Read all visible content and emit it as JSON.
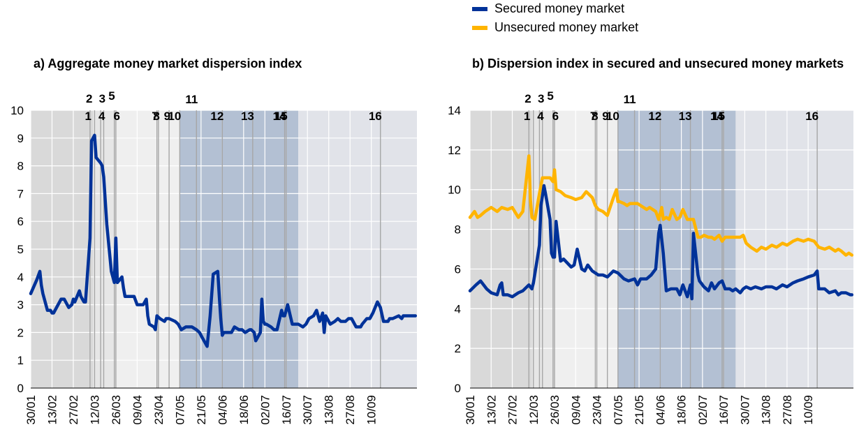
{
  "legend": [
    {
      "name": "Secured money market",
      "color": "#003299"
    },
    {
      "name": "Unsecured money market",
      "color": "#FFB400"
    }
  ],
  "colors": {
    "period_dark": "#D9D9D9",
    "period_light": "#E6E6E6",
    "period_pale": "#EFEFEF",
    "period_blue": "#B3C0D3",
    "period_grey": "#E1E3E9",
    "gridline": "#FFFFFF",
    "event_line": "#A6A6A6"
  },
  "chart_data": [
    {
      "type": "line",
      "title": "a) Aggregate money market dispersion index",
      "xlabel": "",
      "ylabel": "",
      "ylim": [
        0,
        10
      ],
      "yticks": [
        0,
        1,
        2,
        3,
        4,
        5,
        6,
        7,
        8,
        9,
        10
      ],
      "xlim": [
        "30/01",
        "10/10"
      ],
      "x_ticks": [
        "30/01",
        "13/02",
        "27/02",
        "12/03",
        "26/03",
        "09/04",
        "23/04",
        "07/05",
        "21/05",
        "04/06",
        "18/06",
        "02/07",
        "16/07",
        "30/07",
        "13/08",
        "27/08",
        "10/09"
      ],
      "grid": true,
      "shaded_periods": [
        {
          "from": "30/01",
          "to": "11/03",
          "shade": "period_dark"
        },
        {
          "from": "11/03",
          "to": "26/03",
          "shade": "period_light"
        },
        {
          "from": "26/03",
          "to": "07/05",
          "shade": "period_pale"
        },
        {
          "from": "07/05",
          "to": "24/07",
          "shade": "period_blue"
        },
        {
          "from": "24/07",
          "to": "10/10",
          "shade": "period_grey"
        }
      ],
      "event_lines": [
        {
          "label": "1",
          "date": "09/03"
        },
        {
          "label": "2",
          "date": "12/03"
        },
        {
          "label": "3",
          "date": "16/03"
        },
        {
          "label": "4",
          "date": "18/03"
        },
        {
          "label": "5",
          "date": "25/03"
        },
        {
          "label": "6",
          "date": "26/03"
        },
        {
          "label": "7",
          "date": "22/04"
        },
        {
          "label": "8",
          "date": "23/04"
        },
        {
          "label": "9",
          "date": "30/04"
        },
        {
          "label": "10",
          "date": "07/05"
        },
        {
          "label": "11",
          "date": "18/05"
        },
        {
          "label": "12",
          "date": "04/06"
        },
        {
          "label": "13",
          "date": "24/06"
        },
        {
          "label": "14",
          "date": "15/07"
        },
        {
          "label": "15",
          "date": "16/07"
        },
        {
          "label": "16",
          "date": "16/09"
        }
      ],
      "series": [
        {
          "name": "Secured money market",
          "color": "#003299",
          "x": [
            "30/01",
            "03/02",
            "05/02",
            "06/02",
            "07/02",
            "10/02",
            "12/02",
            "13/02",
            "14/02",
            "19/02",
            "21/02",
            "24/02",
            "26/02",
            "27/02",
            "28/02",
            "02/03",
            "03/03",
            "04/03",
            "05/03",
            "06/03",
            "09/03",
            "10/03",
            "12/03",
            "13/03",
            "16/03",
            "17/03",
            "18/03",
            "20/03",
            "23/03",
            "25/03",
            "26/03",
            "27/03",
            "30/03",
            "31/03",
            "01/04",
            "03/04",
            "06/04",
            "07/04",
            "09/04",
            "13/04",
            "15/04",
            "16/04",
            "17/04",
            "20/04",
            "21/04",
            "22/04",
            "24/04",
            "27/04",
            "28/04",
            "30/04",
            "04/05",
            "06/05",
            "08/05",
            "11/05",
            "12/05",
            "15/05",
            "18/05",
            "20/05",
            "22/05",
            "25/05",
            "27/05",
            "29/05",
            "01/06",
            "02/06",
            "03/06",
            "04/06",
            "05/06",
            "08/06",
            "10/06",
            "12/06",
            "15/06",
            "16/06",
            "17/06",
            "19/06",
            "22/06",
            "23/06",
            "25/06",
            "26/06",
            "29/06",
            "30/06",
            "01/07",
            "02/07",
            "03/07",
            "06/07",
            "08/07",
            "10/07",
            "13/07",
            "14/07",
            "15/07",
            "17/07",
            "20/07",
            "21/07",
            "24/07",
            "27/07",
            "29/07",
            "31/07",
            "03/08",
            "05/08",
            "07/08",
            "09/08",
            "10/08",
            "11/08",
            "14/08",
            "17/08",
            "19/08",
            "21/08",
            "24/08",
            "26/08",
            "28/08",
            "31/08",
            "02/09",
            "03/09",
            "04/09",
            "07/09",
            "09/09",
            "10/09",
            "11/09",
            "14/09",
            "16/09",
            "18/09",
            "21/09",
            "22/09",
            "24/09",
            "28/09",
            "30/09",
            "01/10",
            "02/10",
            "05/10",
            "07/10",
            "09/10"
          ],
          "values": [
            3.4,
            3.9,
            4.2,
            3.7,
            3.4,
            2.8,
            2.8,
            2.7,
            2.7,
            3.2,
            3.2,
            2.9,
            3.0,
            3.2,
            3.1,
            3.5,
            3.3,
            3.2,
            3.1,
            3.1,
            5.4,
            8.9,
            9.1,
            8.3,
            8.1,
            8.0,
            7.6,
            5.9,
            4.2,
            3.8,
            5.4,
            3.8,
            4.0,
            3.6,
            3.3,
            3.3,
            3.3,
            3.3,
            3.0,
            3.0,
            3.2,
            2.6,
            2.3,
            2.2,
            2.1,
            2.6,
            2.5,
            2.4,
            2.5,
            2.5,
            2.4,
            2.3,
            2.1,
            2.2,
            2.2,
            2.2,
            2.1,
            2.0,
            1.8,
            1.5,
            2.6,
            4.1,
            4.2,
            3.3,
            2.5,
            1.9,
            2.0,
            2.0,
            2.0,
            2.2,
            2.1,
            2.1,
            2.1,
            2.0,
            2.1,
            2.1,
            2.0,
            1.7,
            2.0,
            3.2,
            2.4,
            2.3,
            2.3,
            2.2,
            2.1,
            2.1,
            2.8,
            2.6,
            2.6,
            3.0,
            2.3,
            2.3,
            2.3,
            2.2,
            2.3,
            2.5,
            2.6,
            2.8,
            2.4,
            2.7,
            2.0,
            2.6,
            2.3,
            2.4,
            2.5,
            2.4,
            2.4,
            2.5,
            2.5,
            2.2,
            2.2,
            2.2,
            2.3,
            2.5,
            2.5,
            2.6,
            2.7,
            3.1,
            2.9,
            2.4,
            2.4,
            2.5,
            2.5,
            2.6,
            2.5,
            2.6,
            2.6,
            2.6,
            2.6,
            2.6
          ]
        }
      ]
    },
    {
      "type": "line",
      "title": "b) Dispersion index in secured and unsecured money markets",
      "xlabel": "",
      "ylabel": "",
      "ylim": [
        0,
        14
      ],
      "yticks": [
        0,
        2,
        4,
        6,
        8,
        10,
        12,
        14
      ],
      "xlim": [
        "30/01",
        "10/10"
      ],
      "x_ticks": [
        "30/01",
        "13/02",
        "27/02",
        "12/03",
        "26/03",
        "09/04",
        "23/04",
        "07/05",
        "21/05",
        "04/06",
        "18/06",
        "02/07",
        "16/07",
        "30/07",
        "13/08",
        "27/08",
        "10/09"
      ],
      "grid": true,
      "shaded_periods": [
        {
          "from": "30/01",
          "to": "11/03",
          "shade": "period_dark"
        },
        {
          "from": "11/03",
          "to": "26/03",
          "shade": "period_light"
        },
        {
          "from": "26/03",
          "to": "07/05",
          "shade": "period_pale"
        },
        {
          "from": "07/05",
          "to": "24/07",
          "shade": "period_blue"
        },
        {
          "from": "24/07",
          "to": "10/10",
          "shade": "period_grey"
        }
      ],
      "event_lines": [
        {
          "label": "1",
          "date": "09/03"
        },
        {
          "label": "2",
          "date": "12/03"
        },
        {
          "label": "3",
          "date": "16/03"
        },
        {
          "label": "4",
          "date": "18/03"
        },
        {
          "label": "5",
          "date": "25/03"
        },
        {
          "label": "6",
          "date": "26/03"
        },
        {
          "label": "7",
          "date": "22/04"
        },
        {
          "label": "8",
          "date": "23/04"
        },
        {
          "label": "9",
          "date": "30/04"
        },
        {
          "label": "10",
          "date": "07/05"
        },
        {
          "label": "11",
          "date": "18/05"
        },
        {
          "label": "12",
          "date": "04/06"
        },
        {
          "label": "13",
          "date": "24/06"
        },
        {
          "label": "14",
          "date": "15/07"
        },
        {
          "label": "15",
          "date": "16/07"
        },
        {
          "label": "16",
          "date": "16/09"
        }
      ],
      "series": [
        {
          "name": "Secured money market",
          "color": "#003299",
          "x": [
            "30/01",
            "03/02",
            "06/02",
            "10/02",
            "13/02",
            "17/02",
            "19/02",
            "20/02",
            "21/02",
            "24/02",
            "27/02",
            "02/03",
            "05/03",
            "09/03",
            "11/03",
            "12/03",
            "16/03",
            "17/03",
            "19/03",
            "20/03",
            "23/03",
            "24/03",
            "25/03",
            "26/03",
            "27/03",
            "30/03",
            "01/04",
            "06/04",
            "08/04",
            "10/04",
            "13/04",
            "15/04",
            "17/04",
            "20/04",
            "22/04",
            "24/04",
            "27/04",
            "30/04",
            "04/05",
            "07/05",
            "11/05",
            "14/05",
            "18/05",
            "20/05",
            "22/05",
            "26/05",
            "29/05",
            "01/06",
            "03/06",
            "04/06",
            "06/06",
            "08/06",
            "11/06",
            "15/06",
            "17/06",
            "19/06",
            "22/06",
            "24/06",
            "25/06",
            "26/06",
            "29/06",
            "30/06",
            "01/07",
            "03/07",
            "06/07",
            "08/07",
            "10/07",
            "13/07",
            "15/07",
            "17/07",
            "20/07",
            "22/07",
            "24/07",
            "27/07",
            "29/07",
            "31/07",
            "03/08",
            "06/08",
            "10/08",
            "13/08",
            "17/08",
            "20/08",
            "24/08",
            "27/08",
            "31/08",
            "03/09",
            "07/09",
            "10/09",
            "14/09",
            "16/09",
            "17/09",
            "21/09",
            "24/09",
            "28/09",
            "30/09",
            "02/10",
            "05/10",
            "08/10",
            "09/10"
          ],
          "values": [
            4.9,
            5.2,
            5.4,
            5.0,
            4.8,
            4.7,
            5.2,
            5.3,
            4.7,
            4.7,
            4.6,
            4.8,
            4.9,
            5.2,
            5.0,
            5.3,
            7.2,
            9.2,
            10.2,
            9.8,
            8.5,
            6.8,
            6.6,
            6.6,
            8.4,
            6.4,
            6.5,
            6.1,
            6.2,
            7.0,
            6.0,
            5.9,
            6.2,
            5.9,
            5.8,
            5.7,
            5.7,
            5.6,
            5.9,
            5.8,
            5.5,
            5.4,
            5.5,
            5.2,
            5.5,
            5.5,
            5.7,
            6.0,
            7.8,
            8.2,
            6.8,
            4.9,
            5.0,
            5.0,
            4.7,
            5.2,
            4.6,
            5.2,
            4.5,
            7.8,
            5.7,
            5.4,
            5.3,
            5.1,
            4.9,
            5.3,
            5.0,
            5.3,
            5.4,
            5.0,
            5.0,
            4.9,
            5.0,
            4.8,
            5.0,
            5.1,
            5.0,
            5.1,
            5.0,
            5.1,
            5.1,
            5.0,
            5.2,
            5.1,
            5.3,
            5.4,
            5.5,
            5.6,
            5.7,
            5.9,
            5.0,
            5.0,
            4.8,
            4.9,
            4.7,
            4.8,
            4.8,
            4.7,
            4.7
          ]
        },
        {
          "name": "Unsecured money market",
          "color": "#FFB400",
          "x": [
            "30/01",
            "02/02",
            "04/02",
            "06/02",
            "09/02",
            "13/02",
            "17/02",
            "20/02",
            "24/02",
            "27/02",
            "02/03",
            "05/03",
            "09/03",
            "10/03",
            "11/03",
            "13/03",
            "16/03",
            "18/03",
            "20/03",
            "23/03",
            "25/03",
            "26/03",
            "27/03",
            "30/03",
            "02/04",
            "06/04",
            "09/04",
            "13/04",
            "16/04",
            "20/04",
            "22/04",
            "24/04",
            "27/04",
            "30/04",
            "04/05",
            "06/05",
            "07/05",
            "08/05",
            "11/05",
            "13/05",
            "15/05",
            "18/05",
            "20/05",
            "22/05",
            "26/05",
            "28/05",
            "01/06",
            "03/06",
            "05/06",
            "06/06",
            "08/06",
            "10/06",
            "12/06",
            "15/06",
            "17/06",
            "19/06",
            "22/06",
            "24/06",
            "26/06",
            "29/06",
            "01/07",
            "03/07",
            "06/07",
            "08/07",
            "10/07",
            "13/07",
            "15/07",
            "17/07",
            "20/07",
            "22/07",
            "24/07",
            "27/07",
            "29/07",
            "31/07",
            "03/08",
            "05/08",
            "07/08",
            "10/08",
            "13/08",
            "17/08",
            "20/08",
            "24/08",
            "27/08",
            "31/08",
            "03/09",
            "07/09",
            "10/09",
            "14/09",
            "17/09",
            "21/09",
            "24/09",
            "28/09",
            "30/09",
            "02/10",
            "05/10",
            "07/10",
            "09/10"
          ],
          "values": [
            8.6,
            8.9,
            8.6,
            8.7,
            8.9,
            9.1,
            8.9,
            9.1,
            9.0,
            9.1,
            8.6,
            8.9,
            11.7,
            9.5,
            8.6,
            8.5,
            9.8,
            10.6,
            10.6,
            10.6,
            10.4,
            11.0,
            10.0,
            9.9,
            9.7,
            9.6,
            9.5,
            9.6,
            9.9,
            9.6,
            9.2,
            9.0,
            8.9,
            8.7,
            9.6,
            10.0,
            9.4,
            9.4,
            9.3,
            9.2,
            9.3,
            9.3,
            9.3,
            9.2,
            9.0,
            9.1,
            8.9,
            8.5,
            9.1,
            8.5,
            8.6,
            8.5,
            9.0,
            8.5,
            8.6,
            9.0,
            8.5,
            8.5,
            8.5,
            7.6,
            7.6,
            7.7,
            7.6,
            7.6,
            7.5,
            7.7,
            7.4,
            7.6,
            7.6,
            7.6,
            7.6,
            7.6,
            7.7,
            7.3,
            7.1,
            7.0,
            6.9,
            7.1,
            7.0,
            7.2,
            7.1,
            7.3,
            7.2,
            7.4,
            7.5,
            7.4,
            7.5,
            7.4,
            7.1,
            7.0,
            7.1,
            6.9,
            7.0,
            6.9,
            6.7,
            6.8,
            6.7
          ]
        }
      ]
    }
  ]
}
